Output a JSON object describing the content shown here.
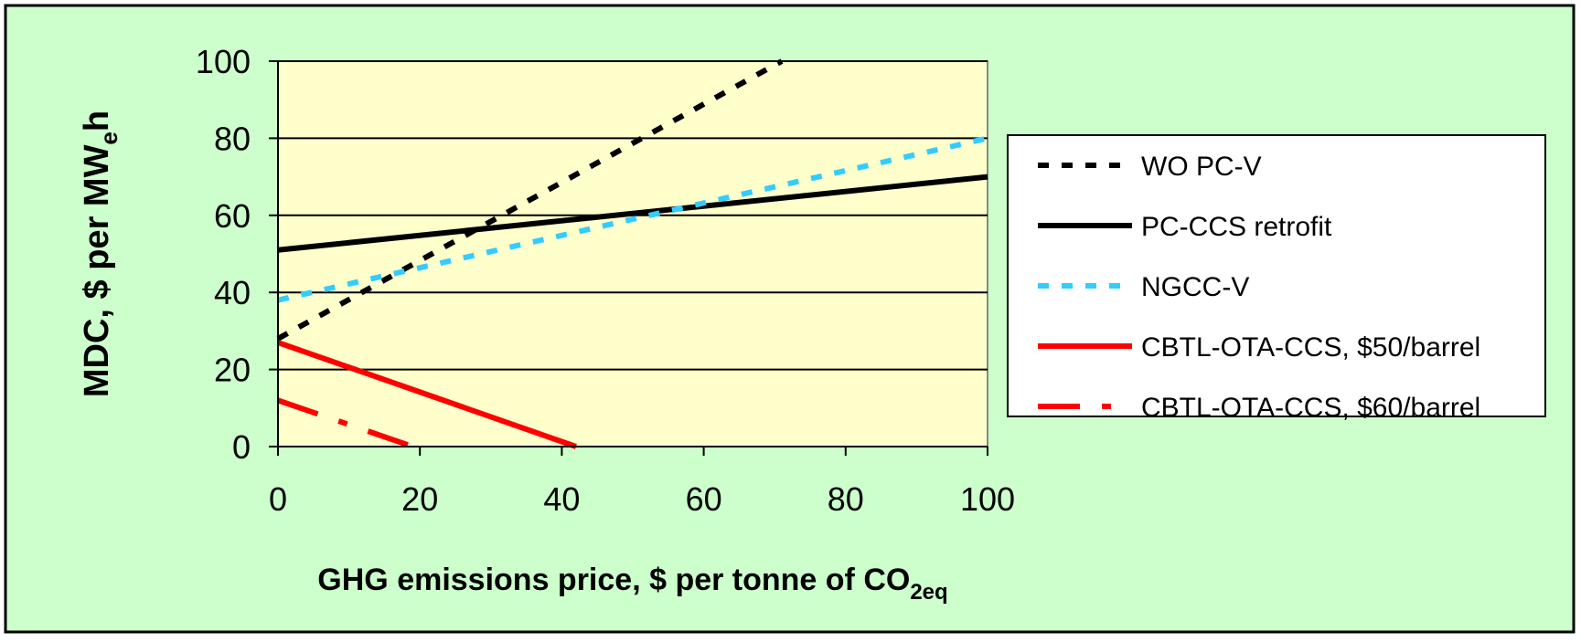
{
  "colors": {
    "chart_area_bg": "#ccffcc",
    "plot_area_bg": "#ffffcc",
    "legend_bg": "#ffffff",
    "black": "#000000",
    "cyan": "#33ccff",
    "red": "#ff0000"
  },
  "chart_data": {
    "type": "line",
    "title": "",
    "xlabel_main": "GHG emissions price, $ per tonne of CO",
    "xlabel_sub": "2eq",
    "ylabel_main": "MDC, $ per MW",
    "ylabel_sub": "e",
    "ylabel_tail": "h",
    "xlim": [
      0,
      100
    ],
    "ylim": [
      0,
      100
    ],
    "x_ticks": [
      "0",
      "20",
      "40",
      "60",
      "80",
      "100"
    ],
    "y_ticks": [
      "0",
      "20",
      "40",
      "60",
      "80",
      "100"
    ],
    "grid": "horizontal major",
    "legend_position": "right",
    "series": [
      {
        "name": "WO PC-V",
        "style": "dotted",
        "color": "#000000",
        "x": [
          0,
          71
        ],
        "y": [
          28,
          100
        ]
      },
      {
        "name": "PC-CCS retrofit",
        "style": "solid",
        "color": "#000000",
        "x": [
          0,
          100
        ],
        "y": [
          51,
          70
        ]
      },
      {
        "name": "NGCC-V",
        "style": "dotted",
        "color": "#33ccff",
        "x": [
          0,
          100
        ],
        "y": [
          38,
          80
        ]
      },
      {
        "name": "CBTL-OTA-CCS, $50/barrel",
        "style": "solid",
        "color": "#ff0000",
        "x": [
          0,
          42
        ],
        "y": [
          27,
          0
        ]
      },
      {
        "name": "CBTL-OTA-CCS, $60/barrel",
        "style": "dashdot",
        "color": "#ff0000",
        "x": [
          0,
          19
        ],
        "y": [
          12,
          0
        ]
      }
    ]
  }
}
